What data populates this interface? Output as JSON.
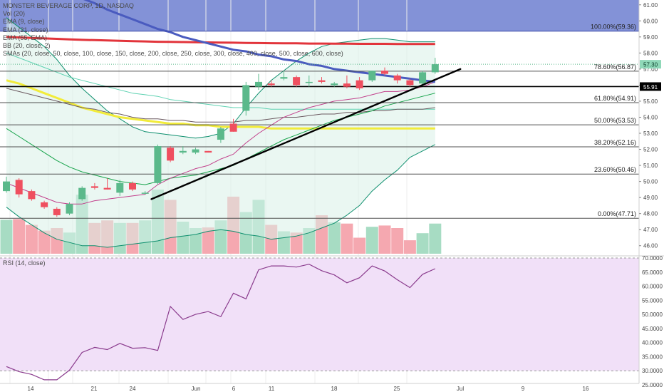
{
  "chart_data": {
    "type": "candlestick",
    "symbol_title": "MONSTER BEVERAGE CORP, 1D, NASDAQ",
    "indicators": [
      "Vol (20)",
      "EMA (9, close)",
      "EMA (21, close)",
      "EMA (55, EMA)",
      "BB (20, close, 2)",
      "SMAs (20, close, 50, close, 100, close, 150, close, 200, close, 250, close, 300, close, 400, close, 500, close, 600, close)"
    ],
    "x_ticks": [
      "14",
      "21",
      "24",
      "Jun",
      "6",
      "11",
      "18",
      "25",
      "Jul",
      "9",
      "16"
    ],
    "price_axis": {
      "ylim": [
        45.5,
        61.3
      ],
      "ticks": [
        "46.00",
        "47.00",
        "48.00",
        "49.00",
        "50.00",
        "51.00",
        "52.00",
        "53.00",
        "54.00",
        "55.00",
        "56.00",
        "57.00",
        "58.00",
        "59.00",
        "60.00",
        "61.00"
      ]
    },
    "current_price": "57.30",
    "line_price": "55.91",
    "fibonacci": [
      {
        "level": 59.36,
        "label": "100.00%(59.36)"
      },
      {
        "level": 56.87,
        "label": "78.60%(56.87)"
      },
      {
        "level": 54.91,
        "label": "61.80%(54.91)"
      },
      {
        "level": 53.53,
        "label": "50.00%(53.53)"
      },
      {
        "level": 52.16,
        "label": "38.20%(52.16)"
      },
      {
        "level": 50.46,
        "label": "23.60%(50.46)"
      },
      {
        "level": 47.71,
        "label": "0.00%(47.71)"
      }
    ],
    "candles": [
      {
        "o": 49.4,
        "h": 50.3,
        "l": 49.3,
        "c": 50.0
      },
      {
        "o": 50.1,
        "h": 50.2,
        "l": 49.0,
        "c": 49.2
      },
      {
        "o": 49.4,
        "h": 49.5,
        "l": 48.8,
        "c": 48.9
      },
      {
        "o": 48.7,
        "h": 48.8,
        "l": 48.3,
        "c": 48.4
      },
      {
        "o": 48.3,
        "h": 48.4,
        "l": 47.8,
        "c": 47.9
      },
      {
        "o": 48.0,
        "h": 48.7,
        "l": 47.9,
        "c": 48.6
      },
      {
        "o": 48.9,
        "h": 49.7,
        "l": 48.8,
        "c": 49.6
      },
      {
        "o": 49.7,
        "h": 49.9,
        "l": 49.5,
        "c": 49.6
      },
      {
        "o": 49.6,
        "h": 50.2,
        "l": 49.5,
        "c": 49.5
      },
      {
        "o": 49.3,
        "h": 50.1,
        "l": 49.1,
        "c": 49.9
      },
      {
        "o": 49.9,
        "h": 50.0,
        "l": 49.4,
        "c": 49.5
      },
      {
        "o": 49.3,
        "h": 49.4,
        "l": 49.2,
        "c": 49.3
      },
      {
        "o": 49.9,
        "h": 52.3,
        "l": 49.8,
        "c": 52.2
      },
      {
        "o": 52.1,
        "h": 52.2,
        "l": 51.2,
        "c": 51.3
      },
      {
        "o": 51.8,
        "h": 52.2,
        "l": 51.7,
        "c": 51.9
      },
      {
        "o": 51.8,
        "h": 52.1,
        "l": 51.7,
        "c": 52.0
      },
      {
        "o": 51.9,
        "h": 51.9,
        "l": 51.8,
        "c": 51.8
      },
      {
        "o": 52.6,
        "h": 53.4,
        "l": 52.4,
        "c": 53.3
      },
      {
        "o": 53.6,
        "h": 53.9,
        "l": 53.1,
        "c": 53.1
      },
      {
        "o": 54.4,
        "h": 56.2,
        "l": 54.1,
        "c": 56.0
      },
      {
        "o": 55.9,
        "h": 56.7,
        "l": 55.7,
        "c": 56.2
      },
      {
        "o": 56.1,
        "h": 56.3,
        "l": 55.9,
        "c": 56.0
      },
      {
        "o": 56.4,
        "h": 56.9,
        "l": 56.3,
        "c": 56.5
      },
      {
        "o": 56.5,
        "h": 56.6,
        "l": 55.9,
        "c": 56.0
      },
      {
        "o": 56.2,
        "h": 56.6,
        "l": 55.9,
        "c": 56.2
      },
      {
        "o": 56.3,
        "h": 56.5,
        "l": 56.1,
        "c": 56.2
      },
      {
        "o": 56.0,
        "h": 56.2,
        "l": 55.9,
        "c": 56.1
      },
      {
        "o": 56.1,
        "h": 56.6,
        "l": 55.8,
        "c": 55.9
      },
      {
        "o": 56.3,
        "h": 56.5,
        "l": 55.7,
        "c": 55.8
      },
      {
        "o": 56.3,
        "h": 56.9,
        "l": 56.2,
        "c": 56.9
      },
      {
        "o": 56.9,
        "h": 57.1,
        "l": 56.6,
        "c": 56.7
      },
      {
        "o": 56.6,
        "h": 56.7,
        "l": 56.1,
        "c": 56.3
      },
      {
        "o": 56.3,
        "h": 56.4,
        "l": 55.9,
        "c": 56.0
      },
      {
        "o": 56.1,
        "h": 56.9,
        "l": 56.0,
        "c": 56.8
      },
      {
        "o": 56.8,
        "h": 57.7,
        "l": 56.7,
        "c": 57.3
      }
    ],
    "volume": [
      0.53,
      0.54,
      0.45,
      0.36,
      0.4,
      0.33,
      0.92,
      0.48,
      0.52,
      0.48,
      0.48,
      0.52,
      1.0,
      0.84,
      0.5,
      0.4,
      0.41,
      0.52,
      0.89,
      0.65,
      0.84,
      0.45,
      0.35,
      0.33,
      0.4,
      0.6,
      0.49,
      0.47,
      0.25,
      0.42,
      0.44,
      0.4,
      0.21,
      0.32,
      0.47
    ],
    "rsi": {
      "label": "RSI (14, close)",
      "ylim": [
        25.5,
        70.0
      ],
      "ticks": [
        "25.0000",
        "30.0000",
        "35.0000",
        "40.0000",
        "45.0000",
        "50.0000",
        "55.0000",
        "60.0000",
        "65.0000",
        "70.0000"
      ],
      "bands": [
        30,
        70
      ],
      "values": [
        31.5,
        29.7,
        28.7,
        26.8,
        26.8,
        30.2,
        36.5,
        38.3,
        37.5,
        39.7,
        38.0,
        38.2,
        37.2,
        52.8,
        48.2,
        50.0,
        51.0,
        49.2,
        57.5,
        55.5,
        65.8,
        67.2,
        67.2,
        66.8,
        67.8,
        65.5,
        64.0,
        61.2,
        63.0,
        67.2,
        65.4,
        62.3,
        59.5,
        64.2,
        66.2
      ]
    },
    "ema9": [
      49.9,
      49.6,
      49.3,
      49.0,
      48.7,
      48.6,
      48.6,
      48.8,
      48.9,
      49.0,
      49.1,
      49.2,
      49.8,
      50.2,
      50.5,
      50.8,
      51.0,
      51.4,
      51.7,
      52.4,
      53.0,
      53.5,
      54.0,
      54.3,
      54.6,
      54.8,
      55.0,
      55.1,
      55.2,
      55.4,
      55.6,
      55.6,
      55.7,
      55.9,
      56.2
    ],
    "ema21": [
      53.3,
      52.8,
      52.3,
      51.8,
      51.3,
      50.9,
      50.6,
      50.4,
      50.2,
      50.0,
      49.9,
      49.8,
      50.0,
      50.2,
      50.3,
      50.4,
      50.6,
      50.8,
      51.0,
      51.4,
      51.8,
      52.2,
      52.6,
      52.9,
      53.2,
      53.5,
      53.8,
      54.0,
      54.2,
      54.4,
      54.7,
      54.9,
      55.1,
      55.3,
      55.5
    ],
    "ema55": [
      55.8,
      55.6,
      55.4,
      55.2,
      55.0,
      54.8,
      54.6,
      54.5,
      54.3,
      54.2,
      54.0,
      53.9,
      53.9,
      53.8,
      53.8,
      53.7,
      53.7,
      53.7,
      53.7,
      53.8,
      53.8,
      53.9,
      54.0,
      54.0,
      54.1,
      54.2,
      54.2,
      54.3,
      54.3,
      54.4,
      54.4,
      54.5,
      54.5,
      54.5,
      54.6
    ],
    "bb_upper": [
      60.2,
      59.6,
      59.0,
      58.4,
      57.6,
      56.6,
      55.8,
      55.1,
      54.4,
      53.9,
      53.4,
      53.1,
      53.0,
      52.9,
      52.8,
      52.7,
      52.8,
      53.0,
      53.6,
      54.6,
      55.5,
      56.3,
      56.9,
      57.5,
      58.0,
      58.4,
      58.6,
      58.7,
      58.8,
      58.9,
      58.9,
      58.8,
      58.7,
      58.7,
      58.7
    ],
    "bb_lower": [
      48.4,
      47.8,
      47.3,
      46.8,
      46.4,
      46.2,
      46.0,
      46.0,
      45.9,
      46.0,
      46.1,
      46.2,
      46.3,
      46.5,
      46.6,
      46.7,
      46.9,
      47.0,
      46.9,
      46.7,
      46.6,
      46.4,
      46.5,
      46.6,
      46.8,
      47.1,
      47.4,
      47.9,
      48.5,
      49.4,
      50.1,
      50.7,
      51.5,
      51.9,
      52.3
    ],
    "sma_yellow": [
      56.3,
      56.1,
      55.8,
      55.5,
      55.2,
      54.9,
      54.6,
      54.4,
      54.2,
      54.0,
      53.9,
      53.8,
      53.7,
      53.6,
      53.6,
      53.5,
      53.5,
      53.4,
      53.4,
      53.4,
      53.4,
      53.3,
      53.3,
      53.3,
      53.3,
      53.3,
      53.3,
      53.3,
      53.3,
      53.3,
      53.3,
      53.3,
      53.3,
      53.3,
      53.3
    ],
    "sma_blue": [
      63.8,
      63.4,
      63.0,
      62.6,
      62.2,
      61.8,
      61.4,
      61.1,
      60.7,
      60.4,
      60.1,
      59.8,
      59.5,
      59.3,
      59.0,
      58.8,
      58.6,
      58.4,
      58.2,
      58.1,
      57.9,
      57.8,
      57.6,
      57.5,
      57.3,
      57.2,
      57.0,
      56.9,
      56.8,
      56.7,
      56.6,
      56.5,
      56.4,
      56.3,
      56.2
    ],
    "sma_red": [
      59.0,
      58.97,
      58.94,
      58.91,
      58.88,
      58.85,
      58.82,
      58.8,
      58.78,
      58.76,
      58.74,
      58.72,
      58.7,
      58.69,
      58.68,
      58.67,
      58.66,
      58.65,
      58.64,
      58.63,
      58.62,
      58.61,
      58.6,
      58.6,
      58.59,
      58.59,
      58.58,
      58.58,
      58.57,
      58.57,
      58.57,
      58.56,
      58.56,
      58.56,
      58.56
    ],
    "sma_teal": [
      58.0,
      57.7,
      57.4,
      57.1,
      56.8,
      56.5,
      56.3,
      56.1,
      55.9,
      55.7,
      55.5,
      55.4,
      55.3,
      55.1,
      55.0,
      54.9,
      54.8,
      54.7,
      54.6,
      54.6,
      54.6,
      54.5,
      54.5,
      54.5,
      54.5,
      54.5,
      54.5,
      54.5,
      54.5,
      54.5,
      54.5,
      54.5,
      54.5,
      54.5,
      54.5
    ],
    "trendline": {
      "from": [
        11.5,
        48.9
      ],
      "to": [
        36.0,
        57.0
      ]
    },
    "colors": {
      "up": "#5bb98b",
      "down": "#ef4f5f",
      "vol_up": "#a7dcc3",
      "vol_down": "#f5a8b0",
      "fib_band": "#6d7fd0",
      "ema9": "#c2418c",
      "ema21": "#16a34a",
      "ema55": "#6b5960",
      "bb": "#0e8f6e",
      "bb_fill": "#d9f0e8",
      "sma_yellow": "#f2ec3a",
      "sma_blue": "#4a5bbf",
      "sma_red": "#e2343b",
      "sma_teal": "#5fd2b2",
      "rsi": "#8a3b8d",
      "rsi_bg": "#f1e0f8"
    }
  }
}
